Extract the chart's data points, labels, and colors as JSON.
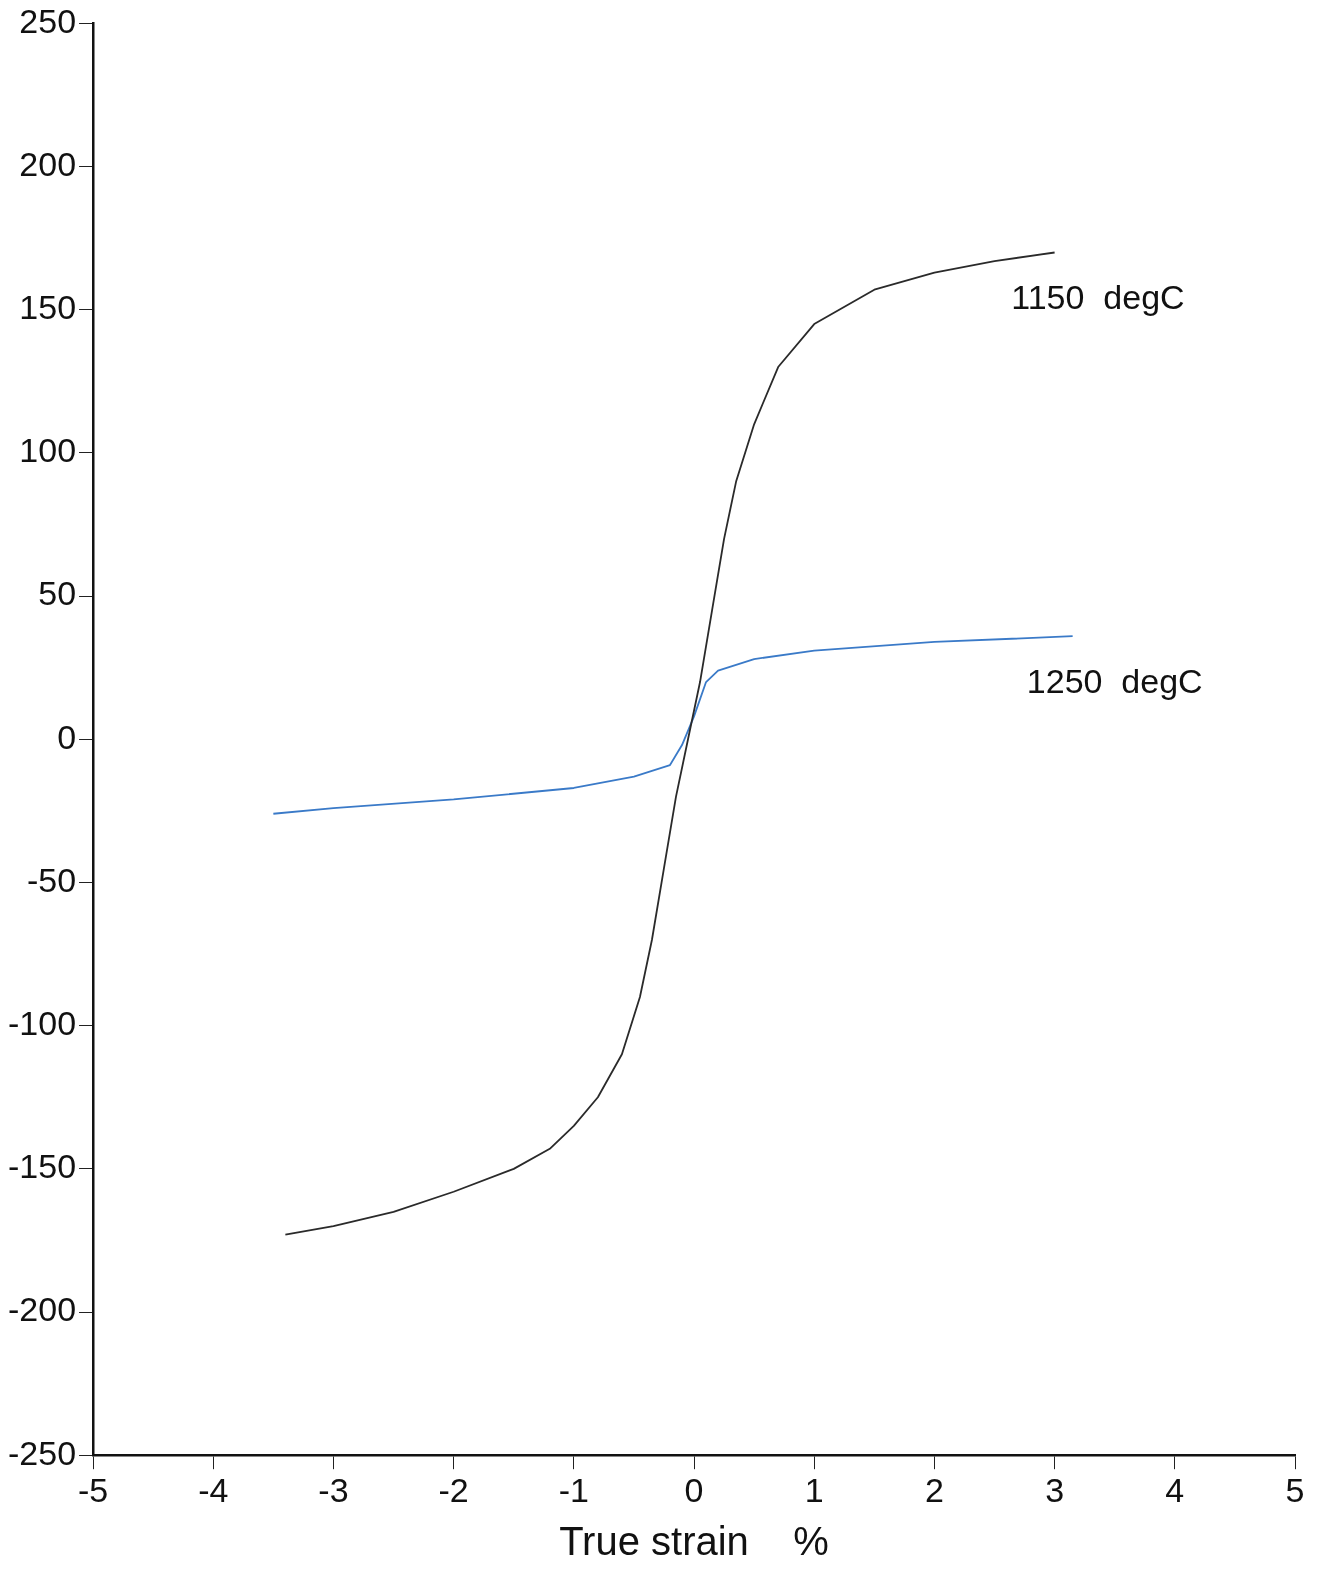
{
  "chart_data": {
    "type": "line",
    "xlabel": "True strain    %",
    "xlim": [
      -5,
      5
    ],
    "xticks": [
      -5,
      -4,
      -3,
      -2,
      -1,
      0,
      1,
      2,
      3,
      4,
      5
    ],
    "ylim": [
      -250,
      250
    ],
    "yticks": [
      -250,
      -200,
      -150,
      -100,
      -50,
      0,
      50,
      100,
      150,
      200,
      250
    ],
    "grid": false,
    "legend": false,
    "marker": "none",
    "line_style": "solid",
    "series": [
      {
        "name": "1150  degC",
        "color": "#2a2a2a",
        "x": [
          -3.4,
          -3,
          -2.5,
          -2,
          -1.5,
          -1.2,
          -1,
          -0.8,
          -0.6,
          -0.45,
          -0.35,
          -0.25,
          -0.15,
          -0.05,
          0.05,
          0.15,
          0.25,
          0.35,
          0.5,
          0.7,
          1,
          1.5,
          2,
          2.5,
          3
        ],
        "values": [
          -173,
          -170,
          -165,
          -158,
          -150,
          -143,
          -135,
          -125,
          -110,
          -90,
          -70,
          -45,
          -20,
          0,
          20,
          45,
          70,
          90,
          110,
          130,
          145,
          157,
          163,
          167,
          170
        ]
      },
      {
        "name": "1250  degC",
        "color": "#3a7ac8",
        "x": [
          -3.5,
          -3,
          -2,
          -1,
          -0.5,
          -0.2,
          -0.1,
          0,
          0.1,
          0.2,
          0.5,
          1,
          2,
          3.15
        ],
        "values": [
          -26,
          -24,
          -21,
          -17,
          -13,
          -9,
          -2,
          8,
          20,
          24,
          28,
          31,
          34,
          36
        ]
      }
    ]
  }
}
